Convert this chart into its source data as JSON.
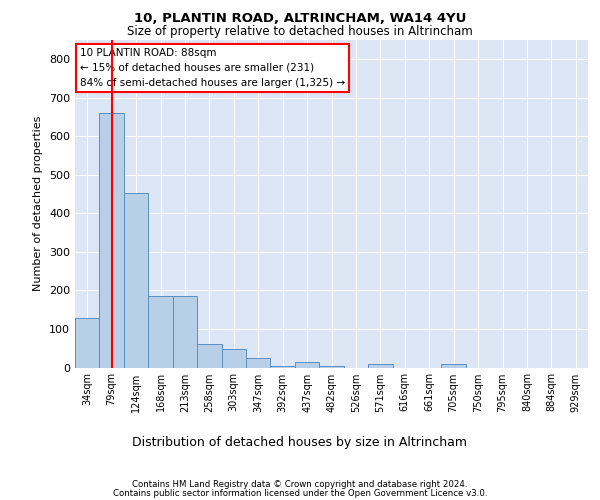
{
  "title1": "10, PLANTIN ROAD, ALTRINCHAM, WA14 4YU",
  "title2": "Size of property relative to detached houses in Altrincham",
  "xlabel": "Distribution of detached houses by size in Altrincham",
  "ylabel": "Number of detached properties",
  "categories": [
    "34sqm",
    "79sqm",
    "124sqm",
    "168sqm",
    "213sqm",
    "258sqm",
    "303sqm",
    "347sqm",
    "392sqm",
    "437sqm",
    "482sqm",
    "526sqm",
    "571sqm",
    "616sqm",
    "661sqm",
    "705sqm",
    "750sqm",
    "795sqm",
    "840sqm",
    "884sqm",
    "929sqm"
  ],
  "values": [
    128,
    660,
    452,
    185,
    185,
    60,
    48,
    25,
    5,
    13,
    5,
    0,
    8,
    0,
    0,
    8,
    0,
    0,
    0,
    0,
    0
  ],
  "bar_color": "#b8cfe8",
  "bar_edge_color": "#5a8fc0",
  "red_line_x": 1.0,
  "annotation_line1": "10 PLANTIN ROAD: 88sqm",
  "annotation_line2": "← 15% of detached houses are smaller (231)",
  "annotation_line3": "84% of semi-detached houses are larger (1,325) →",
  "ylim": [
    0,
    850
  ],
  "yticks": [
    0,
    100,
    200,
    300,
    400,
    500,
    600,
    700,
    800
  ],
  "bg_color": "#dce6f5",
  "footer1": "Contains HM Land Registry data © Crown copyright and database right 2024.",
  "footer2": "Contains public sector information licensed under the Open Government Licence v3.0."
}
